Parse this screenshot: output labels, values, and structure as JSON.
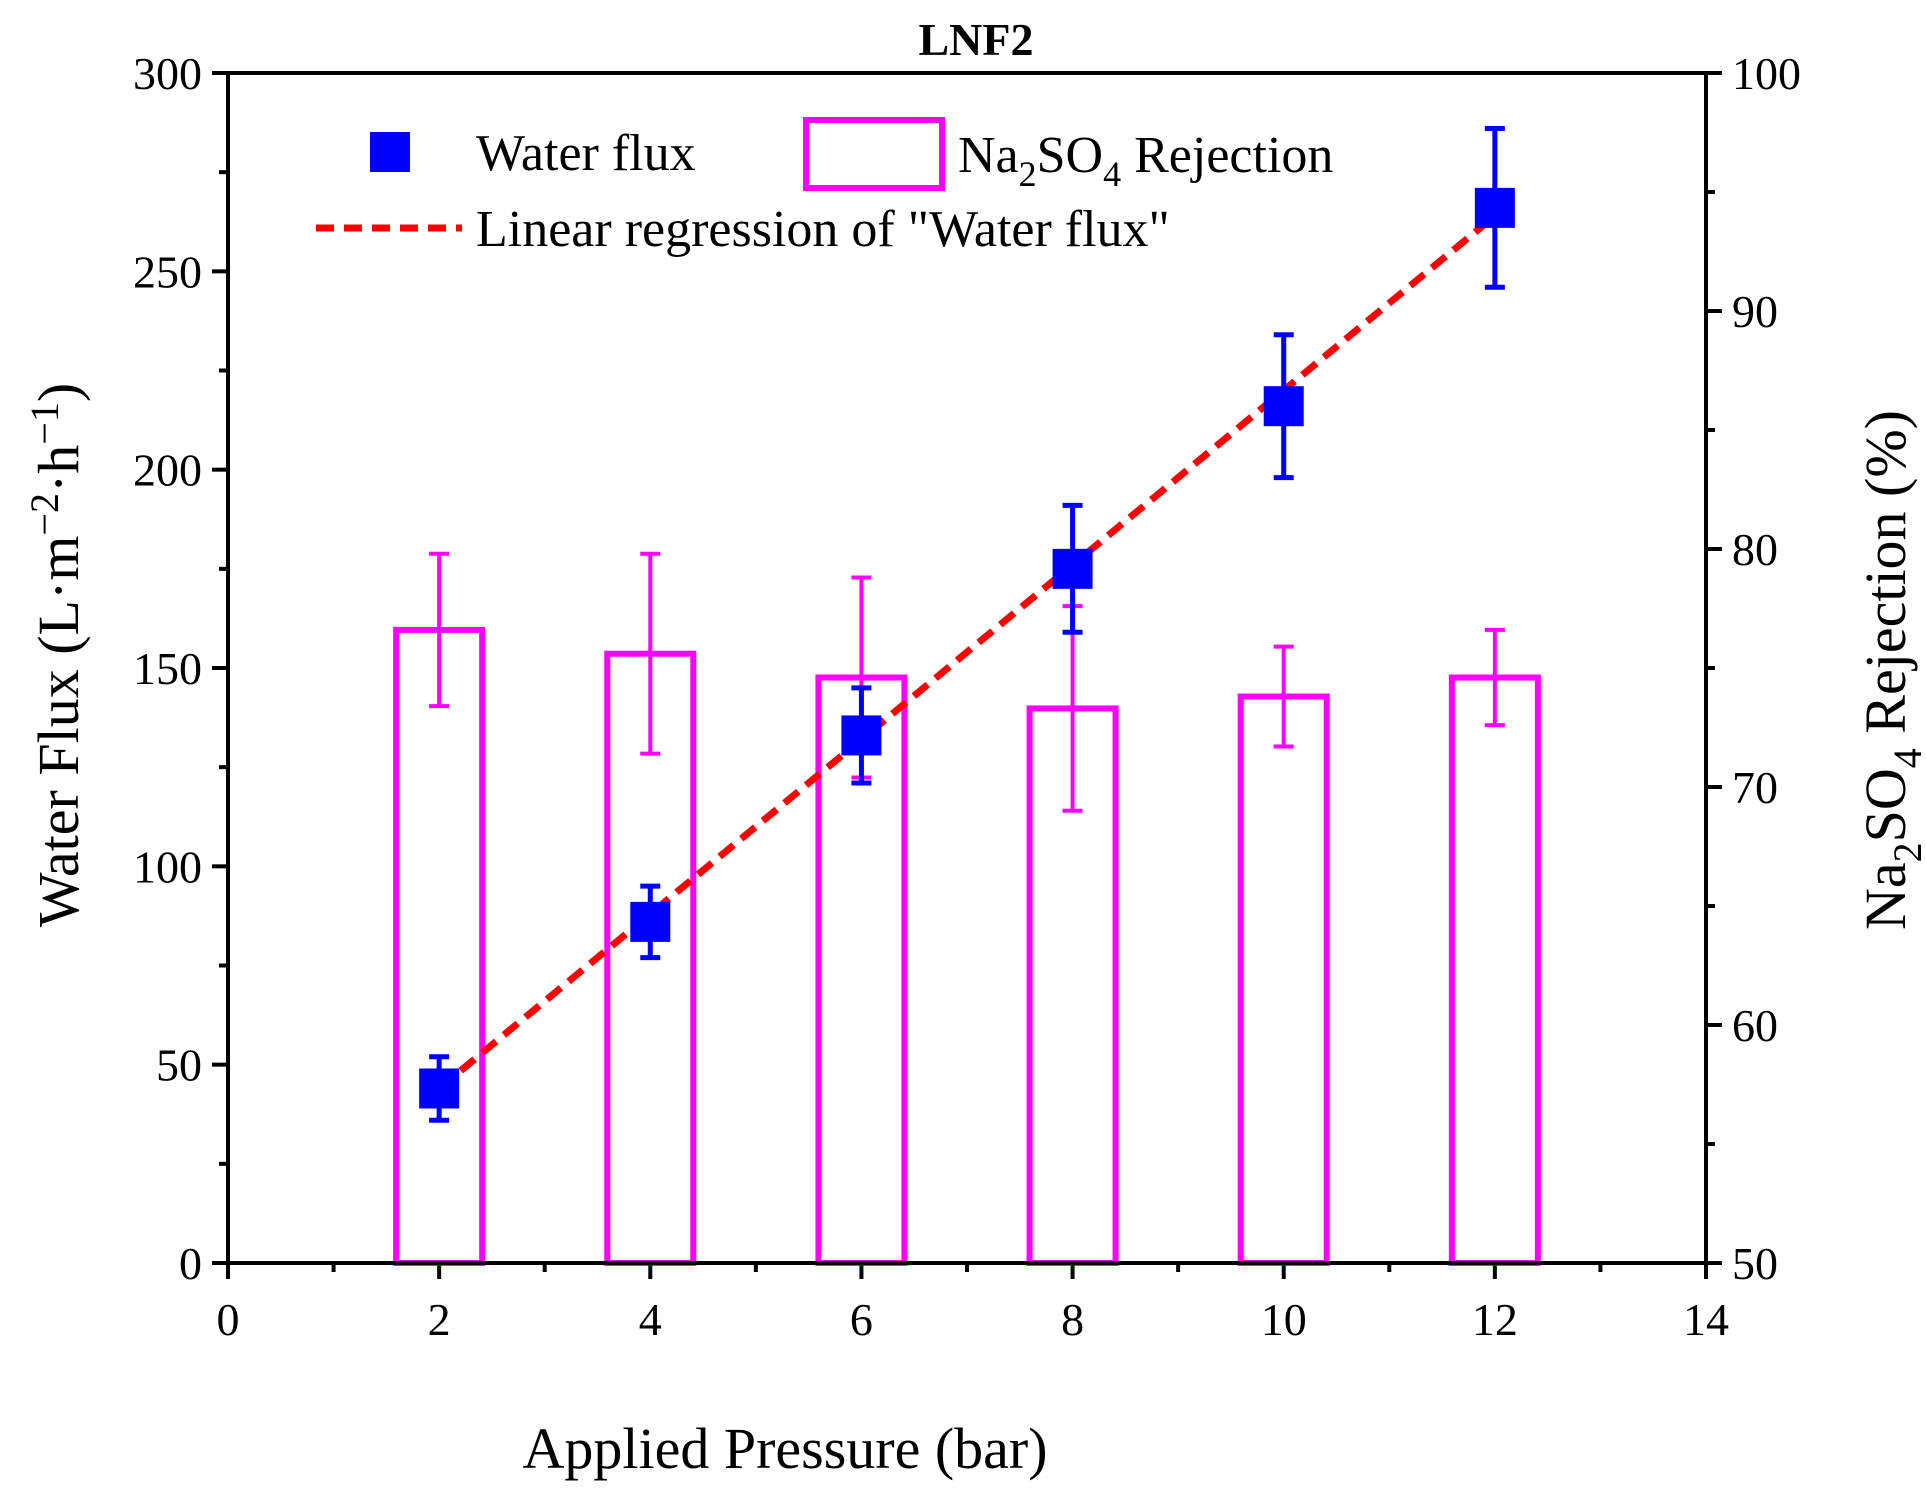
{
  "chart_data": {
    "type": "bar+scatter+line",
    "title": "LNF2",
    "xlabel": "Applied Pressure (bar)",
    "ylabel": "Water Flux (L·m−2·h−1)",
    "ylabel_parts": {
      "main": "Water Flux (L",
      "dot1": "·m",
      "sup1": "−2",
      "dot2": "·h",
      "sup2": "−1",
      "close": ")"
    },
    "y2label": "Na2SO4 Rejection (%)",
    "y2label_parts": {
      "a": "Na",
      "sub1": "2",
      "b": "SO",
      "sub2": "4",
      "c": " Rejection (%)"
    },
    "xlim": [
      0,
      14
    ],
    "ylim": [
      0,
      300
    ],
    "y2lim": [
      50,
      100
    ],
    "xticks": [
      0,
      2,
      4,
      6,
      8,
      10,
      12,
      14
    ],
    "yticks": [
      0,
      50,
      100,
      150,
      200,
      250,
      300
    ],
    "y2ticks": [
      50,
      60,
      70,
      80,
      90,
      100
    ],
    "x_minor_step": 1,
    "y_minor_step": 25,
    "y2_minor_step": 5,
    "series": [
      {
        "name": "Water flux",
        "kind": "scatter",
        "axis": "left",
        "color": "#0000ff",
        "x": [
          2,
          4,
          6,
          8,
          10,
          12
        ],
        "y": [
          44,
          86,
          133,
          175,
          216,
          266
        ],
        "err": [
          8,
          9,
          12,
          16,
          18,
          20
        ]
      },
      {
        "name": "Na2SO4 Rejection",
        "kind": "bar",
        "axis": "right",
        "color": "#ff00ff",
        "x": [
          2,
          4,
          6,
          8,
          10,
          12
        ],
        "y": [
          76.6,
          75.6,
          74.6,
          73.3,
          73.8,
          74.6
        ],
        "err": [
          3.2,
          4.2,
          4.2,
          4.3,
          2.1,
          2.0
        ]
      },
      {
        "name": "Linear regression of \"Water flux\"",
        "kind": "line",
        "axis": "left",
        "color": "#ff0000",
        "dash": "dashed",
        "x": [
          2,
          12
        ],
        "y": [
          44,
          264
        ]
      }
    ],
    "legend": {
      "position": "top-left",
      "entries": [
        {
          "label": "Water flux"
        },
        {
          "label_parts": {
            "a": "Na",
            "sub": "2",
            "b": "SO",
            "sub2": "4",
            "c": " Rejection"
          },
          "label": "Na2SO4 Rejection"
        },
        {
          "label": "Linear regression of \"Water flux\""
        }
      ]
    }
  }
}
